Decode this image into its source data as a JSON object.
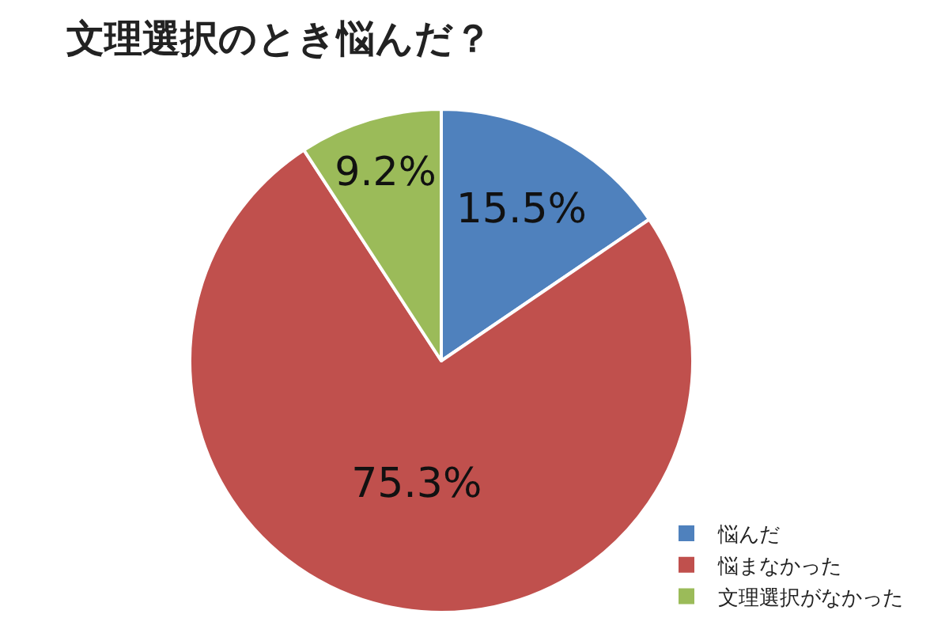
{
  "chart_data": {
    "type": "pie",
    "title": "文理選択のとき悩んだ？",
    "categories": [
      "悩んだ",
      "悩まなかった",
      "文理選択がなかった"
    ],
    "values": [
      15.5,
      75.3,
      9.2
    ],
    "colors": [
      "#4f81bd",
      "#c0504d",
      "#9bbb59"
    ],
    "value_labels": [
      "15.5%",
      "75.3%",
      "9.2%"
    ],
    "legend": "bottom right"
  }
}
